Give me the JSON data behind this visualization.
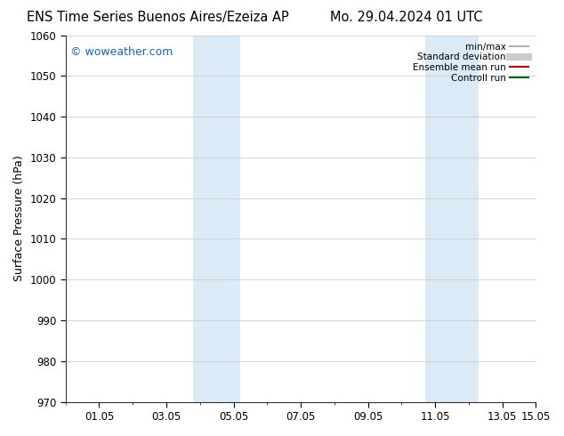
{
  "title_left": "ENS Time Series Buenos Aires/Ezeiza AP",
  "title_right": "Mo. 29.04.2024 01 UTC",
  "ylabel": "Surface Pressure (hPa)",
  "ylim": [
    970,
    1060
  ],
  "yticks": [
    970,
    980,
    990,
    1000,
    1010,
    1020,
    1030,
    1040,
    1050,
    1060
  ],
  "xlim_start": 0.0,
  "xlim_end": 14.0,
  "xtick_positions": [
    1.0,
    3.0,
    5.0,
    7.0,
    9.0,
    11.0,
    13.0
  ],
  "xtick_labels": [
    "01.05",
    "03.05",
    "05.05",
    "07.05",
    "09.05",
    "11.05",
    "13.05"
  ],
  "xtick_end_pos": 14.0,
  "xtick_end_label": "15.05",
  "shaded_bands": [
    {
      "x_start": 3.8,
      "x_end": 5.2
    },
    {
      "x_start": 10.7,
      "x_end": 12.3
    }
  ],
  "shade_color": "#daeaf7",
  "watermark_text": "© woweather.com",
  "watermark_color": "#1565C0",
  "legend_items": [
    {
      "label": "min/max",
      "color": "#b0b0b0",
      "lw": 1.5,
      "style": "solid"
    },
    {
      "label": "Standard deviation",
      "color": "#cccccc",
      "lw": 6,
      "style": "solid"
    },
    {
      "label": "Ensemble mean run",
      "color": "#cc0000",
      "lw": 1.5,
      "style": "solid"
    },
    {
      "label": "Controll run",
      "color": "#006600",
      "lw": 1.5,
      "style": "solid"
    }
  ],
  "bg_color": "#ffffff",
  "grid_color": "#cccccc",
  "title_fontsize": 10.5,
  "tick_fontsize": 8.5,
  "ylabel_fontsize": 9,
  "watermark_fontsize": 9
}
